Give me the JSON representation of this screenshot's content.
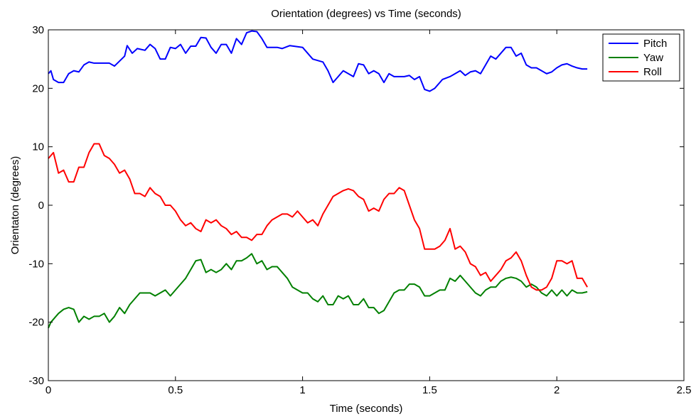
{
  "chart_data": {
    "type": "line",
    "title": "Orientation (degrees) vs Time (seconds)",
    "xlabel": "Time (seconds)",
    "ylabel": "Orientaton (degrees)",
    "xlim": [
      0,
      2.5
    ],
    "ylim": [
      -30,
      30
    ],
    "xticks": [
      0,
      0.5,
      1,
      1.5,
      2,
      2.5
    ],
    "xtick_labels": [
      "0",
      "0.5",
      "1",
      "1.5",
      "2",
      "2.5"
    ],
    "yticks": [
      -30,
      -20,
      -10,
      0,
      10,
      20,
      30
    ],
    "ytick_labels": [
      "-30",
      "-20",
      "-10",
      "0",
      "10",
      "20",
      "30"
    ],
    "grid": false,
    "legend_position": "top-right",
    "series": [
      {
        "name": "Pitch",
        "color": "#0000ff",
        "x": [
          0,
          0.01,
          0.02,
          0.04,
          0.06,
          0.08,
          0.1,
          0.12,
          0.14,
          0.16,
          0.18,
          0.2,
          0.24,
          0.26,
          0.3,
          0.31,
          0.33,
          0.35,
          0.38,
          0.4,
          0.42,
          0.44,
          0.46,
          0.48,
          0.5,
          0.52,
          0.54,
          0.56,
          0.58,
          0.6,
          0.62,
          0.64,
          0.66,
          0.68,
          0.7,
          0.72,
          0.74,
          0.76,
          0.78,
          0.8,
          0.82,
          0.84,
          0.86,
          0.88,
          0.9,
          0.92,
          0.95,
          1.0,
          1.04,
          1.08,
          1.1,
          1.12,
          1.14,
          1.16,
          1.18,
          1.2,
          1.22,
          1.24,
          1.26,
          1.28,
          1.3,
          1.32,
          1.34,
          1.36,
          1.4,
          1.42,
          1.44,
          1.46,
          1.48,
          1.5,
          1.52,
          1.55,
          1.58,
          1.6,
          1.62,
          1.64,
          1.66,
          1.68,
          1.7,
          1.72,
          1.74,
          1.76,
          1.78,
          1.8,
          1.82,
          1.84,
          1.86,
          1.88,
          1.9,
          1.92,
          1.94,
          1.96,
          1.98,
          2.0,
          2.02,
          2.04,
          2.06,
          2.08,
          2.1,
          2.12
        ],
        "y": [
          22.5,
          23.0,
          21.5,
          21.0,
          21.0,
          22.5,
          23.0,
          22.8,
          24.0,
          24.5,
          24.3,
          24.3,
          24.3,
          23.8,
          25.5,
          27.3,
          26.0,
          26.8,
          26.5,
          27.5,
          26.8,
          25.0,
          25.0,
          27.0,
          26.8,
          27.5,
          26.0,
          27.2,
          27.2,
          28.7,
          28.6,
          27.0,
          26.0,
          27.5,
          27.5,
          26.0,
          28.5,
          27.5,
          29.5,
          29.8,
          29.7,
          28.5,
          27.0,
          27.0,
          27.0,
          26.8,
          27.3,
          27.0,
          25.0,
          24.5,
          23.0,
          21.0,
          22.0,
          23.0,
          22.5,
          22.0,
          24.2,
          24.0,
          22.5,
          23.0,
          22.5,
          21.0,
          22.5,
          22.0,
          22.0,
          22.2,
          21.5,
          22.0,
          19.8,
          19.5,
          20.0,
          21.5,
          22.0,
          22.5,
          23.0,
          22.2,
          22.8,
          23.0,
          22.5,
          24.0,
          25.5,
          25.0,
          26.0,
          27.0,
          27.0,
          25.5,
          26.0,
          24.0,
          23.5,
          23.5,
          23.0,
          22.5,
          22.8,
          23.5,
          24.0,
          24.2,
          23.8,
          23.5,
          23.3,
          23.3
        ]
      },
      {
        "name": "Yaw",
        "color": "#008000",
        "x": [
          0,
          0.01,
          0.02,
          0.04,
          0.06,
          0.08,
          0.1,
          0.12,
          0.14,
          0.16,
          0.18,
          0.2,
          0.22,
          0.24,
          0.26,
          0.28,
          0.3,
          0.32,
          0.34,
          0.36,
          0.38,
          0.4,
          0.42,
          0.44,
          0.46,
          0.48,
          0.5,
          0.52,
          0.54,
          0.56,
          0.58,
          0.6,
          0.62,
          0.64,
          0.66,
          0.68,
          0.7,
          0.72,
          0.74,
          0.76,
          0.78,
          0.8,
          0.82,
          0.84,
          0.86,
          0.88,
          0.9,
          0.92,
          0.94,
          0.96,
          0.98,
          1.0,
          1.02,
          1.04,
          1.06,
          1.08,
          1.1,
          1.12,
          1.14,
          1.16,
          1.18,
          1.2,
          1.22,
          1.24,
          1.26,
          1.28,
          1.3,
          1.32,
          1.34,
          1.36,
          1.38,
          1.4,
          1.42,
          1.44,
          1.46,
          1.48,
          1.5,
          1.52,
          1.54,
          1.56,
          1.58,
          1.6,
          1.62,
          1.64,
          1.66,
          1.68,
          1.7,
          1.72,
          1.74,
          1.76,
          1.78,
          1.8,
          1.82,
          1.84,
          1.86,
          1.88,
          1.9,
          1.92,
          1.94,
          1.96,
          1.98,
          2.0,
          2.02,
          2.04,
          2.06,
          2.08,
          2.1,
          2.12
        ],
        "y": [
          -21.0,
          -20.0,
          -19.5,
          -18.5,
          -17.8,
          -17.5,
          -17.8,
          -20.0,
          -19.0,
          -19.5,
          -19.0,
          -19.0,
          -18.5,
          -20.0,
          -19.0,
          -17.5,
          -18.5,
          -17.0,
          -16.0,
          -15.0,
          -15.0,
          -15.0,
          -15.5,
          -15.0,
          -14.5,
          -15.5,
          -14.5,
          -13.5,
          -12.5,
          -11.0,
          -9.5,
          -9.3,
          -11.5,
          -11.0,
          -11.5,
          -11.0,
          -10.0,
          -11.0,
          -9.5,
          -9.5,
          -9.0,
          -8.3,
          -10.0,
          -9.5,
          -11.0,
          -10.5,
          -10.5,
          -11.5,
          -12.5,
          -14.0,
          -14.5,
          -15.0,
          -15.0,
          -16.0,
          -16.5,
          -15.5,
          -17.0,
          -17.0,
          -15.5,
          -16.0,
          -15.5,
          -17.0,
          -17.0,
          -16.0,
          -17.5,
          -17.5,
          -18.5,
          -18.0,
          -16.5,
          -15.0,
          -14.5,
          -14.5,
          -13.5,
          -13.5,
          -14.0,
          -15.5,
          -15.5,
          -15.0,
          -14.5,
          -14.5,
          -12.5,
          -13.0,
          -12.0,
          -13.0,
          -14.0,
          -15.0,
          -15.5,
          -14.5,
          -14.0,
          -14.0,
          -13.0,
          -12.5,
          -12.3,
          -12.5,
          -13.0,
          -14.0,
          -13.5,
          -14.0,
          -15.0,
          -15.5,
          -14.5,
          -15.5,
          -14.5,
          -15.5,
          -14.5,
          -15.0,
          -15.0,
          -14.8
        ]
      },
      {
        "name": "Roll",
        "color": "#ff0000",
        "x": [
          0,
          0.01,
          0.02,
          0.04,
          0.06,
          0.08,
          0.1,
          0.12,
          0.14,
          0.16,
          0.18,
          0.2,
          0.22,
          0.24,
          0.26,
          0.28,
          0.3,
          0.32,
          0.34,
          0.36,
          0.38,
          0.4,
          0.42,
          0.44,
          0.46,
          0.48,
          0.5,
          0.52,
          0.54,
          0.56,
          0.58,
          0.6,
          0.62,
          0.64,
          0.66,
          0.68,
          0.7,
          0.72,
          0.74,
          0.76,
          0.78,
          0.8,
          0.82,
          0.84,
          0.86,
          0.88,
          0.9,
          0.92,
          0.94,
          0.96,
          0.98,
          1.0,
          1.02,
          1.04,
          1.06,
          1.08,
          1.1,
          1.12,
          1.14,
          1.16,
          1.18,
          1.2,
          1.22,
          1.24,
          1.26,
          1.28,
          1.3,
          1.32,
          1.34,
          1.36,
          1.38,
          1.4,
          1.42,
          1.44,
          1.46,
          1.48,
          1.5,
          1.52,
          1.54,
          1.56,
          1.58,
          1.6,
          1.62,
          1.64,
          1.66,
          1.68,
          1.7,
          1.72,
          1.74,
          1.76,
          1.78,
          1.8,
          1.82,
          1.84,
          1.86,
          1.88,
          1.9,
          1.92,
          1.94,
          1.96,
          1.98,
          2.0,
          2.02,
          2.04,
          2.06,
          2.08,
          2.1,
          2.12
        ],
        "y": [
          8.0,
          8.5,
          9.0,
          5.5,
          6.0,
          4.0,
          4.0,
          6.5,
          6.5,
          9.0,
          10.5,
          10.5,
          8.5,
          8.0,
          7.0,
          5.5,
          6.0,
          4.5,
          2.0,
          2.0,
          1.5,
          3.0,
          2.0,
          1.5,
          0.0,
          0.0,
          -1.0,
          -2.5,
          -3.5,
          -3.0,
          -4.0,
          -4.5,
          -2.5,
          -3.0,
          -2.5,
          -3.5,
          -4.0,
          -5.0,
          -4.5,
          -5.5,
          -5.5,
          -6.0,
          -5.0,
          -5.0,
          -3.5,
          -2.5,
          -2.0,
          -1.5,
          -1.5,
          -2.0,
          -1.0,
          -2.0,
          -3.0,
          -2.5,
          -3.5,
          -1.5,
          0.0,
          1.5,
          2.0,
          2.5,
          2.8,
          2.5,
          1.5,
          1.0,
          -1.0,
          -0.5,
          -1.0,
          1.0,
          2.0,
          2.0,
          3.0,
          2.5,
          0.0,
          -2.5,
          -4.0,
          -7.5,
          -7.5,
          -7.5,
          -7.0,
          -6.0,
          -4.0,
          -7.5,
          -7.0,
          -8.0,
          -10.0,
          -10.5,
          -12.0,
          -11.5,
          -13.0,
          -12.0,
          -11.0,
          -9.5,
          -9.0,
          -8.0,
          -9.5,
          -12.0,
          -14.0,
          -14.5,
          -14.5,
          -14.0,
          -12.5,
          -9.5,
          -9.5,
          -10.0,
          -9.5,
          -12.5,
          -12.5,
          -14.0
        ]
      }
    ]
  }
}
